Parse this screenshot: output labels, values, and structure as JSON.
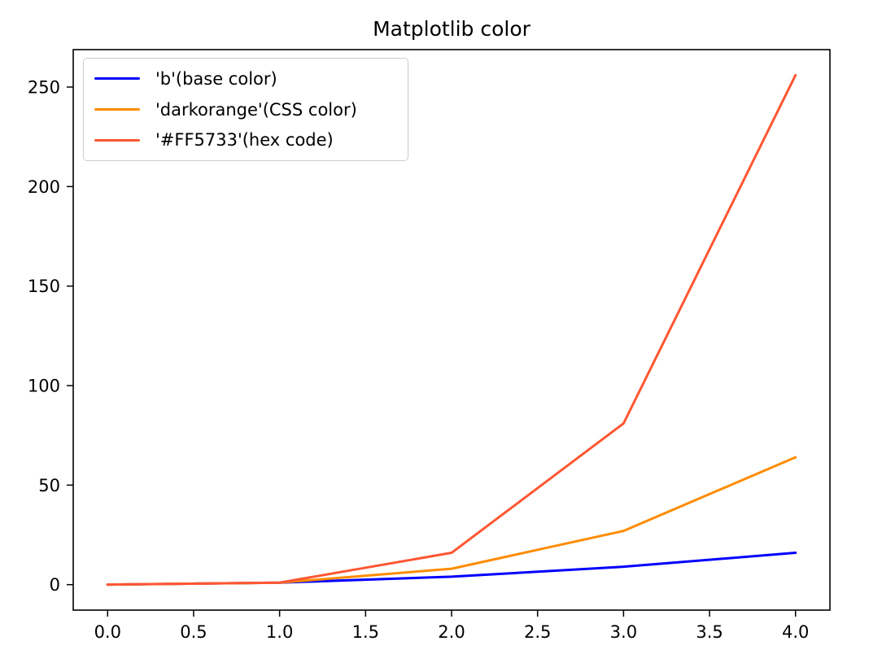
{
  "figure": {
    "background": "#ffffff",
    "axis_color": "#000000",
    "legend_border_color": "#cccccc"
  },
  "chart_data": {
    "type": "line",
    "title": "Matplotlib color",
    "xlabel": "",
    "ylabel": "",
    "x": [
      0,
      1,
      2,
      3,
      4
    ],
    "series": [
      {
        "name": "'b'(base color)",
        "color": "#0000FF",
        "values": [
          0,
          1,
          4,
          9,
          16
        ]
      },
      {
        "name": "'darkorange'(CSS color)",
        "color": "#FF8C00",
        "values": [
          0,
          1,
          8,
          27,
          64
        ]
      },
      {
        "name": "'#FF5733'(hex code)",
        "color": "#FF5733",
        "values": [
          0,
          1,
          16,
          81,
          256
        ]
      }
    ],
    "xticks": [
      0.0,
      0.5,
      1.0,
      1.5,
      2.0,
      2.5,
      3.0,
      3.5,
      4.0
    ],
    "xtick_labels": [
      "0.0",
      "0.5",
      "1.0",
      "1.5",
      "2.0",
      "2.5",
      "3.0",
      "3.5",
      "4.0"
    ],
    "yticks": [
      0,
      50,
      100,
      150,
      200,
      250
    ],
    "ytick_labels": [
      "0",
      "50",
      "100",
      "150",
      "200",
      "250"
    ],
    "xlim": [
      -0.2,
      4.2
    ],
    "ylim": [
      -12.8,
      268.8
    ],
    "grid": false,
    "legend_position": "upper-left"
  }
}
